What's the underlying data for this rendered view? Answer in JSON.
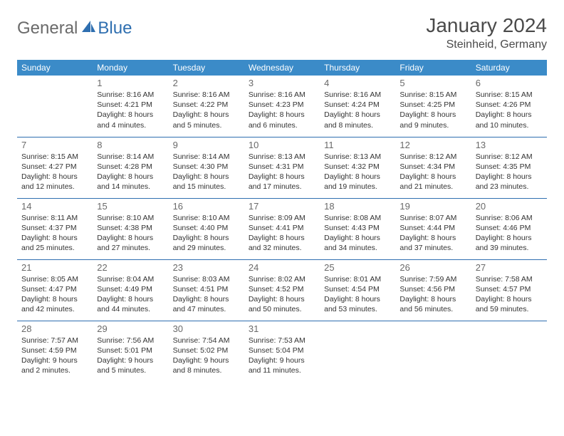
{
  "logo": {
    "general": "General",
    "blue": "Blue"
  },
  "title": "January 2024",
  "location": "Steinheid, Germany",
  "colors": {
    "header_bg": "#3b8bc8",
    "header_text": "#ffffff",
    "rule": "#2f6fb0",
    "daynum": "#6a6a6a",
    "body_text": "#333333",
    "logo_gray": "#6a6a6a",
    "logo_blue": "#2f6fb0",
    "background": "#ffffff"
  },
  "weekdays": [
    "Sunday",
    "Monday",
    "Tuesday",
    "Wednesday",
    "Thursday",
    "Friday",
    "Saturday"
  ],
  "weeks": [
    [
      null,
      {
        "n": "1",
        "sunrise": "8:16 AM",
        "sunset": "4:21 PM",
        "day_h": 8,
        "day_m": 4
      },
      {
        "n": "2",
        "sunrise": "8:16 AM",
        "sunset": "4:22 PM",
        "day_h": 8,
        "day_m": 5
      },
      {
        "n": "3",
        "sunrise": "8:16 AM",
        "sunset": "4:23 PM",
        "day_h": 8,
        "day_m": 6
      },
      {
        "n": "4",
        "sunrise": "8:16 AM",
        "sunset": "4:24 PM",
        "day_h": 8,
        "day_m": 8
      },
      {
        "n": "5",
        "sunrise": "8:15 AM",
        "sunset": "4:25 PM",
        "day_h": 8,
        "day_m": 9
      },
      {
        "n": "6",
        "sunrise": "8:15 AM",
        "sunset": "4:26 PM",
        "day_h": 8,
        "day_m": 10
      }
    ],
    [
      {
        "n": "7",
        "sunrise": "8:15 AM",
        "sunset": "4:27 PM",
        "day_h": 8,
        "day_m": 12
      },
      {
        "n": "8",
        "sunrise": "8:14 AM",
        "sunset": "4:28 PM",
        "day_h": 8,
        "day_m": 14
      },
      {
        "n": "9",
        "sunrise": "8:14 AM",
        "sunset": "4:30 PM",
        "day_h": 8,
        "day_m": 15
      },
      {
        "n": "10",
        "sunrise": "8:13 AM",
        "sunset": "4:31 PM",
        "day_h": 8,
        "day_m": 17
      },
      {
        "n": "11",
        "sunrise": "8:13 AM",
        "sunset": "4:32 PM",
        "day_h": 8,
        "day_m": 19
      },
      {
        "n": "12",
        "sunrise": "8:12 AM",
        "sunset": "4:34 PM",
        "day_h": 8,
        "day_m": 21
      },
      {
        "n": "13",
        "sunrise": "8:12 AM",
        "sunset": "4:35 PM",
        "day_h": 8,
        "day_m": 23
      }
    ],
    [
      {
        "n": "14",
        "sunrise": "8:11 AM",
        "sunset": "4:37 PM",
        "day_h": 8,
        "day_m": 25
      },
      {
        "n": "15",
        "sunrise": "8:10 AM",
        "sunset": "4:38 PM",
        "day_h": 8,
        "day_m": 27
      },
      {
        "n": "16",
        "sunrise": "8:10 AM",
        "sunset": "4:40 PM",
        "day_h": 8,
        "day_m": 29
      },
      {
        "n": "17",
        "sunrise": "8:09 AM",
        "sunset": "4:41 PM",
        "day_h": 8,
        "day_m": 32
      },
      {
        "n": "18",
        "sunrise": "8:08 AM",
        "sunset": "4:43 PM",
        "day_h": 8,
        "day_m": 34
      },
      {
        "n": "19",
        "sunrise": "8:07 AM",
        "sunset": "4:44 PM",
        "day_h": 8,
        "day_m": 37
      },
      {
        "n": "20",
        "sunrise": "8:06 AM",
        "sunset": "4:46 PM",
        "day_h": 8,
        "day_m": 39
      }
    ],
    [
      {
        "n": "21",
        "sunrise": "8:05 AM",
        "sunset": "4:47 PM",
        "day_h": 8,
        "day_m": 42
      },
      {
        "n": "22",
        "sunrise": "8:04 AM",
        "sunset": "4:49 PM",
        "day_h": 8,
        "day_m": 44
      },
      {
        "n": "23",
        "sunrise": "8:03 AM",
        "sunset": "4:51 PM",
        "day_h": 8,
        "day_m": 47
      },
      {
        "n": "24",
        "sunrise": "8:02 AM",
        "sunset": "4:52 PM",
        "day_h": 8,
        "day_m": 50
      },
      {
        "n": "25",
        "sunrise": "8:01 AM",
        "sunset": "4:54 PM",
        "day_h": 8,
        "day_m": 53
      },
      {
        "n": "26",
        "sunrise": "7:59 AM",
        "sunset": "4:56 PM",
        "day_h": 8,
        "day_m": 56
      },
      {
        "n": "27",
        "sunrise": "7:58 AM",
        "sunset": "4:57 PM",
        "day_h": 8,
        "day_m": 59
      }
    ],
    [
      {
        "n": "28",
        "sunrise": "7:57 AM",
        "sunset": "4:59 PM",
        "day_h": 9,
        "day_m": 2
      },
      {
        "n": "29",
        "sunrise": "7:56 AM",
        "sunset": "5:01 PM",
        "day_h": 9,
        "day_m": 5
      },
      {
        "n": "30",
        "sunrise": "7:54 AM",
        "sunset": "5:02 PM",
        "day_h": 9,
        "day_m": 8
      },
      {
        "n": "31",
        "sunrise": "7:53 AM",
        "sunset": "5:04 PM",
        "day_h": 9,
        "day_m": 11
      },
      null,
      null,
      null
    ]
  ]
}
